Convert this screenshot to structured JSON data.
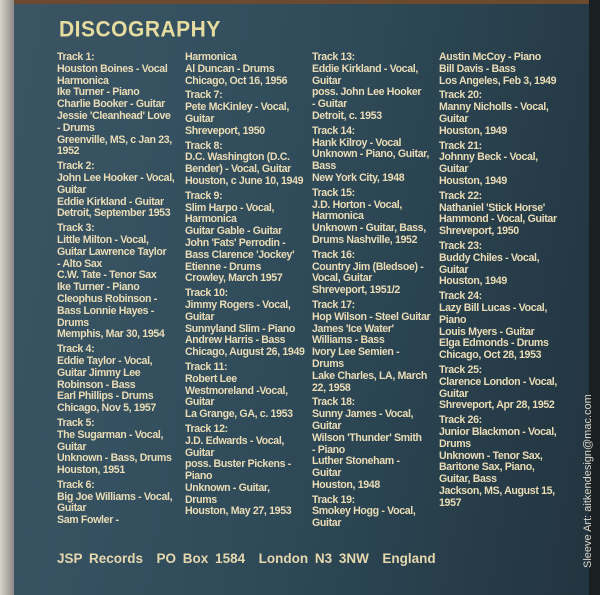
{
  "title": "DISCOGRAPHY",
  "columns": [
    [
      [
        "Track 1:",
        "Houston Boines - Vocal",
        "Harmonica",
        "Ike Turner - Piano",
        "Charlie Booker - Guitar",
        "Jessie 'Cleanhead' Love",
        "- Drums",
        "Greenville, MS, c Jan 23,",
        "1952"
      ],
      [
        "Track 2:",
        "John Lee Hooker - Vocal,",
        "Guitar",
        "Eddie Kirkland - Guitar",
        "Detroit, September 1953"
      ],
      [
        "Track 3:",
        "Little Milton - Vocal,",
        "Guitar Lawrence Taylor",
        "- Alto Sax",
        "C.W. Tate - Tenor Sax",
        "Ike Turner - Piano",
        "Cleophus Robinson -",
        "Bass Lonnie Hayes -",
        "Drums",
        "Memphis, Mar 30, 1954"
      ],
      [
        "Track 4:",
        "Eddie Taylor - Vocal,",
        "Guitar Jimmy Lee",
        "Robinson - Bass",
        "Earl Phillips - Drums",
        "Chicago, Nov 5, 1957"
      ],
      [
        "Track 5:",
        "The Sugarman - Vocal,",
        "Guitar",
        "Unknown - Bass, Drums",
        "Houston, 1951"
      ],
      [
        "Track 6:",
        "Big Joe Williams - Vocal,",
        "Guitar",
        "Sam Fowler -"
      ]
    ],
    [
      [
        "Harmonica",
        "Al Duncan - Drums",
        "Chicago, Oct 16, 1956"
      ],
      [
        "Track 7:",
        "Pete McKinley - Vocal,",
        "Guitar",
        "Shreveport, 1950"
      ],
      [
        "Track 8:",
        "D.C. Washington  (D.C.",
        "Bender) - Vocal, Guitar",
        "Houston, c June 10, 1949"
      ],
      [
        "Track 9:",
        "Slim Harpo - Vocal,",
        "Harmonica",
        "Guitar Gable - Guitar",
        "John 'Fats' Perrodin -",
        "Bass Clarence 'Jockey'",
        "Etienne - Drums",
        "Crowley, March 1957"
      ],
      [
        "Track 10:",
        "Jimmy Rogers - Vocal,",
        "Guitar",
        "Sunnyland Slim - Piano",
        "Andrew Harris - Bass",
        "Chicago, August 26, 1949"
      ],
      [
        "Track 11:",
        "Robert Lee",
        "Westmoreland -Vocal,",
        "Guitar",
        "La Grange, GA, c. 1953"
      ],
      [
        "Track 12:",
        "J.D. Edwards - Vocal,",
        "Guitar",
        "poss. Buster Pickens -",
        "Piano",
        "Unknown - Guitar,",
        "Drums",
        "Houston, May 27, 1953"
      ]
    ],
    [
      [
        "Track 13:",
        "Eddie Kirkland - Vocal,",
        "Guitar",
        "poss. John Lee Hooker",
        "- Guitar",
        "Detroit, c. 1953"
      ],
      [
        "Track 14:",
        "Hank Kilroy - Vocal",
        "Unknown - Piano, Guitar,",
        "Bass",
        "New York City, 1948"
      ],
      [
        "Track 15:",
        "J.D. Horton - Vocal,",
        "Harmonica",
        "Unknown - Guitar, Bass,",
        "Drums  Nashville, 1952"
      ],
      [
        "Track 16:",
        "Country Jim (Bledsoe) -",
        "Vocal, Guitar",
        "Shreveport, 1951/2"
      ],
      [
        "Track 17:",
        "Hop Wilson - Steel Guitar",
        "James 'Ice Water'",
        "Williams - Bass",
        "Ivory Lee Semien -",
        "Drums",
        "Lake Charles, LA, March",
        "22, 1958"
      ],
      [
        "Track 18:",
        "Sunny James - Vocal,",
        "Guitar",
        "Wilson 'Thunder' Smith",
        "- Piano",
        "Luther Stoneham -",
        "Guitar",
        "Houston, 1948"
      ],
      [
        "Track 19:",
        "Smokey Hogg - Vocal,",
        "Guitar"
      ]
    ],
    [
      [
        "Austin McCoy - Piano",
        "Bill Davis - Bass",
        "Los Angeles, Feb 3, 1949"
      ],
      [
        "Track 20:",
        "Manny Nicholls - Vocal,",
        "Guitar",
        "Houston, 1949"
      ],
      [
        "Track 21:",
        "Johnny Beck - Vocal,",
        "Guitar",
        "Houston, 1949"
      ],
      [
        "Track 22:",
        "Nathaniel 'Stick Horse'",
        "Hammond - Vocal, Guitar",
        "Shreveport, 1950"
      ],
      [
        "Track 23:",
        "Buddy Chiles - Vocal,",
        "Guitar",
        "Houston, 1949"
      ],
      [
        "Track 24:",
        "Lazy Bill Lucas - Vocal,",
        "Piano",
        "Louis Myers - Guitar",
        "Elga Edmonds - Drums",
        "Chicago, Oct 28, 1953"
      ],
      [
        "Track 25:",
        "Clarence London - Vocal,",
        "Guitar",
        "Shreveport, Apr 28, 1952"
      ],
      [
        "Track 26:",
        "Junior Blackmon - Vocal,",
        "Drums",
        " Unknown - Tenor Sax,",
        "Baritone Sax, Piano,",
        "Guitar, Bass",
        "Jackson, MS, August 15,",
        "1957"
      ]
    ]
  ],
  "footer": "JSP Records  PO Box 1584  London N3 3NW  England",
  "credit": "Sleeve Art: aitkendesign@mac.com",
  "colors": {
    "background": "#2f4856",
    "text": "#eadcb6",
    "title": "#e6dca0"
  }
}
